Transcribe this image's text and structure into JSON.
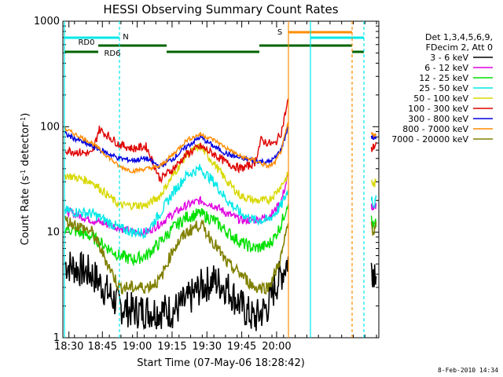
{
  "chart_data": {
    "type": "line",
    "title": "HESSI Observing Summary Count Rates",
    "xlabel": "Start Time (07-May-06 18:28:42)",
    "ylabel_base": "Count Rate (s",
    "ylabel_sup1": "-1",
    "ylabel_mid": " detector",
    "ylabel_sup2": "-1",
    "ylabel_end": ")",
    "y_scale": "log",
    "ylim": [
      1,
      1000
    ],
    "xlim_minutes": [
      18.5,
      19.92
    ],
    "x_ticks": [
      {
        "t": 18.8,
        "label": "18:30"
      },
      {
        "t": 26.0,
        "label": "18:45"
      },
      {
        "t": 33.5,
        "label": "19:00"
      },
      {
        "t": 41.0,
        "label": "19:15"
      },
      {
        "t": 48.5,
        "label": "19:30"
      },
      {
        "t": 56.0,
        "label": "19:45"
      },
      {
        "t": 63.5,
        "label": "20:00"
      }
    ],
    "y_ticks": [
      {
        "v": 1,
        "label": "1"
      },
      {
        "v": 10,
        "label": "10"
      },
      {
        "v": 100,
        "label": "100"
      },
      {
        "v": 1000,
        "label": "1000"
      }
    ],
    "legend": {
      "placement": "right",
      "header": [
        "Det 1,3,4,5,6,9,",
        "FDecim 2, Att 0"
      ],
      "entries": [
        {
          "label": "3 - 6 keV",
          "color": "#000000"
        },
        {
          "label": "6 - 12 keV",
          "color": "#e000e0"
        },
        {
          "label": "12 - 25 keV",
          "color": "#00e000"
        },
        {
          "label": "25 - 50 keV",
          "color": "#00e8e8"
        },
        {
          "label": "50 - 100 keV",
          "color": "#d8d800"
        },
        {
          "label": "100 - 300 keV",
          "color": "#e00000"
        },
        {
          "label": "300 - 800 keV",
          "color": "#0000e0"
        },
        {
          "label": "800 - 7000 keV",
          "color": "#ff8c00"
        },
        {
          "label": "7000 - 20000 keV",
          "color": "#808000"
        }
      ]
    },
    "flags": [
      {
        "label": "RD0",
        "color": "#00b0b0"
      },
      {
        "label": "RD6",
        "color": "#006400"
      },
      {
        "label": "N",
        "color": "#00e8e8"
      },
      {
        "label": "S",
        "color": "#ff8c00"
      }
    ],
    "series": [
      {
        "name": "3 - 6 keV",
        "color": "#000000",
        "noise": 0.35,
        "segments": [
          [
            [
              0,
              5
            ],
            [
              4,
              4
            ],
            [
              8,
              2
            ],
            [
              10,
              1.8
            ],
            [
              12,
              1.8
            ],
            [
              14,
              1.8
            ],
            [
              16,
              1.8
            ],
            [
              18,
              2.2
            ],
            [
              20,
              3
            ],
            [
              22,
              3.5
            ],
            [
              24,
              3
            ],
            [
              26,
              2
            ],
            [
              28,
              1.5
            ],
            [
              30,
              2
            ],
            [
              31,
              3
            ],
            [
              32,
              4
            ],
            [
              33,
              5.5
            ]
          ],
          [
            [
              0,
              4.5
            ],
            [
              1,
              4.5
            ],
            [
              2,
              4.5
            ]
          ]
        ]
      },
      {
        "name": "6 - 12 keV",
        "color": "#e000e0",
        "noise": 0.08,
        "segments": [
          [
            [
              0,
              16
            ],
            [
              4,
              13
            ],
            [
              8,
              11
            ],
            [
              10,
              10
            ],
            [
              12,
              10
            ],
            [
              14,
              12
            ],
            [
              16,
              15
            ],
            [
              18,
              18
            ],
            [
              20,
              20
            ],
            [
              22,
              18
            ],
            [
              24,
              15
            ],
            [
              26,
              13
            ],
            [
              28,
              13
            ],
            [
              30,
              14
            ],
            [
              31,
              16
            ],
            [
              32,
              20
            ],
            [
              33,
              35
            ]
          ],
          [
            [
              0,
              18
            ],
            [
              1,
              16
            ],
            [
              2,
              18
            ]
          ]
        ]
      },
      {
        "name": "12 - 25 keV",
        "color": "#00e000",
        "noise": 0.12,
        "segments": [
          [
            [
              0,
              11
            ],
            [
              4,
              9
            ],
            [
              8,
              6
            ],
            [
              10,
              5.5
            ],
            [
              12,
              6
            ],
            [
              14,
              8
            ],
            [
              16,
              11
            ],
            [
              18,
              14
            ],
            [
              20,
              15
            ],
            [
              22,
              13
            ],
            [
              24,
              10
            ],
            [
              26,
              8
            ],
            [
              28,
              7
            ],
            [
              30,
              7.5
            ],
            [
              31,
              9
            ],
            [
              32,
              12
            ],
            [
              33,
              20
            ]
          ],
          [
            [
              0,
              13
            ],
            [
              1,
              11
            ],
            [
              2,
              12
            ]
          ]
        ]
      },
      {
        "name": "25 - 50 keV",
        "color": "#00e8e8",
        "noise": 0.1,
        "segments": [
          [
            [
              0,
              16
            ],
            [
              4,
              15
            ],
            [
              8,
              11
            ],
            [
              10,
              10
            ],
            [
              12,
              10
            ],
            [
              14,
              15
            ],
            [
              16,
              24
            ],
            [
              18,
              35
            ],
            [
              20,
              40
            ],
            [
              22,
              30
            ],
            [
              24,
              20
            ],
            [
              26,
              15
            ],
            [
              28,
              13
            ],
            [
              30,
              13
            ],
            [
              31,
              15
            ],
            [
              32,
              18
            ],
            [
              33,
              25
            ]
          ],
          [
            [
              0,
              22
            ],
            [
              1,
              18
            ],
            [
              2,
              20
            ]
          ]
        ]
      },
      {
        "name": "50 - 100 keV",
        "color": "#d8d800",
        "noise": 0.08,
        "segments": [
          [
            [
              0,
              35
            ],
            [
              4,
              30
            ],
            [
              8,
              18
            ],
            [
              10,
              18
            ],
            [
              12,
              18
            ],
            [
              14,
              22
            ],
            [
              16,
              35
            ],
            [
              18,
              55
            ],
            [
              20,
              65
            ],
            [
              22,
              45
            ],
            [
              24,
              30
            ],
            [
              26,
              22
            ],
            [
              28,
              20
            ],
            [
              30,
              20
            ],
            [
              31,
              23
            ],
            [
              32,
              28
            ],
            [
              33,
              35
            ]
          ],
          [
            [
              0,
              30
            ],
            [
              1,
              28
            ],
            [
              2,
              30
            ]
          ]
        ]
      },
      {
        "name": "100 - 300 keV",
        "color": "#e00000",
        "noise": 0.08,
        "segments": [
          [
            [
              0,
              60
            ],
            [
              4,
              55
            ],
            [
              5,
              95
            ],
            [
              8,
              68
            ],
            [
              10,
              62
            ],
            [
              12,
              65
            ],
            [
              14,
              32
            ],
            [
              16,
              40
            ],
            [
              18,
              55
            ],
            [
              20,
              65
            ],
            [
              22,
              55
            ],
            [
              24,
              45
            ],
            [
              26,
              40
            ],
            [
              28,
              45
            ],
            [
              29,
              75
            ],
            [
              30,
              70
            ],
            [
              31,
              68
            ],
            [
              32,
              90
            ],
            [
              33,
              180
            ]
          ],
          [
            [
              0,
              60
            ],
            [
              1,
              65
            ],
            [
              2,
              68
            ]
          ]
        ]
      },
      {
        "name": "300 - 800 keV",
        "color": "#0000e0",
        "noise": 0.05,
        "segments": [
          [
            [
              0,
              85
            ],
            [
              4,
              65
            ],
            [
              8,
              50
            ],
            [
              10,
              48
            ],
            [
              12,
              50
            ],
            [
              14,
              42
            ],
            [
              16,
              50
            ],
            [
              18,
              65
            ],
            [
              20,
              80
            ],
            [
              22,
              65
            ],
            [
              24,
              55
            ],
            [
              26,
              50
            ],
            [
              28,
              48
            ],
            [
              30,
              46
            ],
            [
              31,
              50
            ],
            [
              32,
              62
            ],
            [
              33,
              100
            ]
          ],
          [
            [
              0,
              80
            ],
            [
              1,
              78
            ],
            [
              2,
              80
            ]
          ]
        ]
      },
      {
        "name": "800 - 7000 keV",
        "color": "#ff8c00",
        "noise": 0.04,
        "segments": [
          [
            [
              0,
              95
            ],
            [
              4,
              70
            ],
            [
              8,
              42
            ],
            [
              10,
              38
            ],
            [
              12,
              40
            ],
            [
              14,
              42
            ],
            [
              16,
              55
            ],
            [
              18,
              75
            ],
            [
              20,
              85
            ],
            [
              22,
              75
            ],
            [
              24,
              62
            ],
            [
              26,
              52
            ],
            [
              28,
              48
            ],
            [
              30,
              42
            ],
            [
              31,
              45
            ],
            [
              32,
              60
            ],
            [
              33,
              110
            ]
          ],
          [
            [
              0,
              85
            ],
            [
              1,
              84
            ],
            [
              2,
              85
            ]
          ]
        ]
      },
      {
        "name": "7000 - 20000 keV",
        "color": "#808000",
        "noise": 0.12,
        "segments": [
          [
            [
              0,
              13
            ],
            [
              4,
              10
            ],
            [
              8,
              3
            ],
            [
              10,
              3
            ],
            [
              12,
              3
            ],
            [
              14,
              3.5
            ],
            [
              16,
              7
            ],
            [
              18,
              10
            ],
            [
              20,
              12
            ],
            [
              22,
              8
            ],
            [
              24,
              5
            ],
            [
              26,
              4
            ],
            [
              28,
              3
            ],
            [
              30,
              3
            ],
            [
              31,
              4
            ],
            [
              32,
              6
            ],
            [
              33,
              12
            ]
          ],
          [
            [
              0,
              12
            ],
            [
              1,
              10
            ],
            [
              2,
              11
            ]
          ]
        ]
      }
    ]
  },
  "footer": {
    "timestamp": "8-Feb-2010 14:34"
  }
}
